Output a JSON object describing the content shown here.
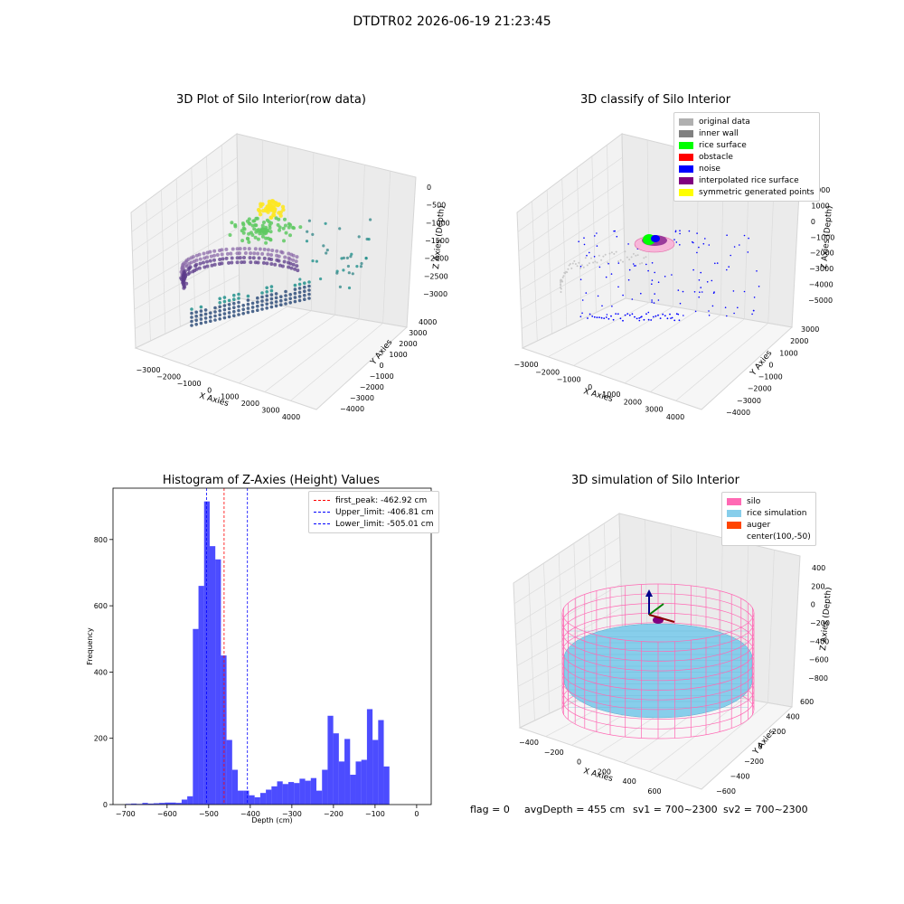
{
  "figure": {
    "title": "DTDTR02 2026-06-19 21:23:45",
    "status": {
      "flag": "flag = 0",
      "avg": "avgDepth = 455 cm",
      "sv1": "sv1 = 700~2300",
      "sv2": "sv2 = 700~2300"
    }
  },
  "colors": {
    "raw_top": "#fde725",
    "raw_mid": "#21918c",
    "raw_low": "#440154",
    "original": "#b0b0b0",
    "inner_wall": "#808080",
    "rice_surface": "#00ff00",
    "obstacle": "#ff0000",
    "noise": "#0000ff",
    "interp": "#800080",
    "symmetric": "#ffff00",
    "silo": "#ff69b4",
    "rice_sim": "#87ceeb",
    "auger": "#ff4500",
    "hist_bar": "#0000ff",
    "peak_line": "#ff0000",
    "limit_line": "#0000ff"
  },
  "chart_data": [
    {
      "type": "scatter",
      "title": "3D Plot of Silo Interior(row data)",
      "xlabel": "X Axies",
      "ylabel": "Y Axies",
      "zlabel": "Z Axies (Depth)",
      "x_ticks": [
        "−3000",
        "−2000",
        "−1000",
        "0",
        "1000",
        "2000",
        "3000",
        "4000"
      ],
      "y_ticks": [
        "−4000",
        "−3000",
        "−2000",
        "−1000",
        "0",
        "1000",
        "2000",
        "3000",
        "4000"
      ],
      "z_ticks": [
        "0",
        "−500",
        "−1000",
        "−1500",
        "−2000",
        "−2500",
        "−3000"
      ],
      "colormap": "viridis"
    },
    {
      "type": "scatter",
      "title": "3D classify of Silo Interior",
      "xlabel": "X Axies",
      "ylabel": "Y Axies",
      "zlabel": "Z Axies (Depth)",
      "x_ticks": [
        "−3000",
        "−2000",
        "−1000",
        "0",
        "1000",
        "2000",
        "3000",
        "4000"
      ],
      "y_ticks": [
        "−4000",
        "−3000",
        "−2000",
        "−1000",
        "0",
        "1000",
        "2000",
        "3000"
      ],
      "z_ticks": [
        "2000",
        "1000",
        "0",
        "−1000",
        "−2000",
        "−3000",
        "−4000",
        "−5000"
      ],
      "legend": [
        "original data",
        "inner wall",
        "rice surface",
        "obstacle",
        "noise",
        "interpolated rice surface",
        "symmetric generated points"
      ],
      "legend_position": "top-right"
    },
    {
      "type": "bar",
      "title": "Histogram of Z-Axies (Height) Values",
      "xlabel": "Depth (cm)",
      "ylabel": "Frequency",
      "xlim": [
        -730,
        35
      ],
      "ylim": [
        0,
        955
      ],
      "x_ticks": [
        -700,
        -600,
        -500,
        -400,
        -300,
        -200,
        -100,
        0
      ],
      "x_tick_labels": [
        "−700",
        "−600",
        "−500",
        "−400",
        "−300",
        "−200",
        "−100",
        "0"
      ],
      "y_ticks": [
        0,
        200,
        400,
        600,
        800
      ],
      "bin_width": 13.5,
      "bin_start": -700,
      "values": [
        2,
        3,
        2,
        5,
        3,
        4,
        5,
        6,
        6,
        5,
        15,
        25,
        530,
        660,
        915,
        780,
        740,
        450,
        195,
        105,
        42,
        42,
        28,
        22,
        35,
        45,
        55,
        70,
        62,
        68,
        65,
        78,
        72,
        80,
        42,
        105,
        268,
        215,
        130,
        198,
        90,
        130,
        135,
        288,
        195,
        255,
        115
      ],
      "lines": [
        {
          "name": "first_peak: -462.92 cm",
          "x": -462.92,
          "color": "#ff0000"
        },
        {
          "name": "Upper_limit: -406.81 cm",
          "x": -406.81,
          "color": "#0000ff"
        },
        {
          "name": "Lower_limit: -505.01 cm",
          "x": -505.01,
          "color": "#0000ff"
        }
      ],
      "legend_position": "top-right"
    },
    {
      "type": "other",
      "title": "3D simulation of Silo Interior",
      "xlabel": "X Axies",
      "ylabel": "Y Axies",
      "zlabel": "Z Axies (Depth)",
      "x_ticks": [
        "−400",
        "−200",
        "0",
        "200",
        "400",
        "600"
      ],
      "y_ticks": [
        "−600",
        "−400",
        "−200",
        "0",
        "200",
        "400",
        "600"
      ],
      "z_ticks": [
        "400",
        "200",
        "0",
        "−200",
        "−400",
        "−600",
        "−800"
      ],
      "legend": [
        "silo",
        "rice simulation",
        "auger",
        "center(100,-50)"
      ],
      "legend_position": "top-right"
    }
  ]
}
